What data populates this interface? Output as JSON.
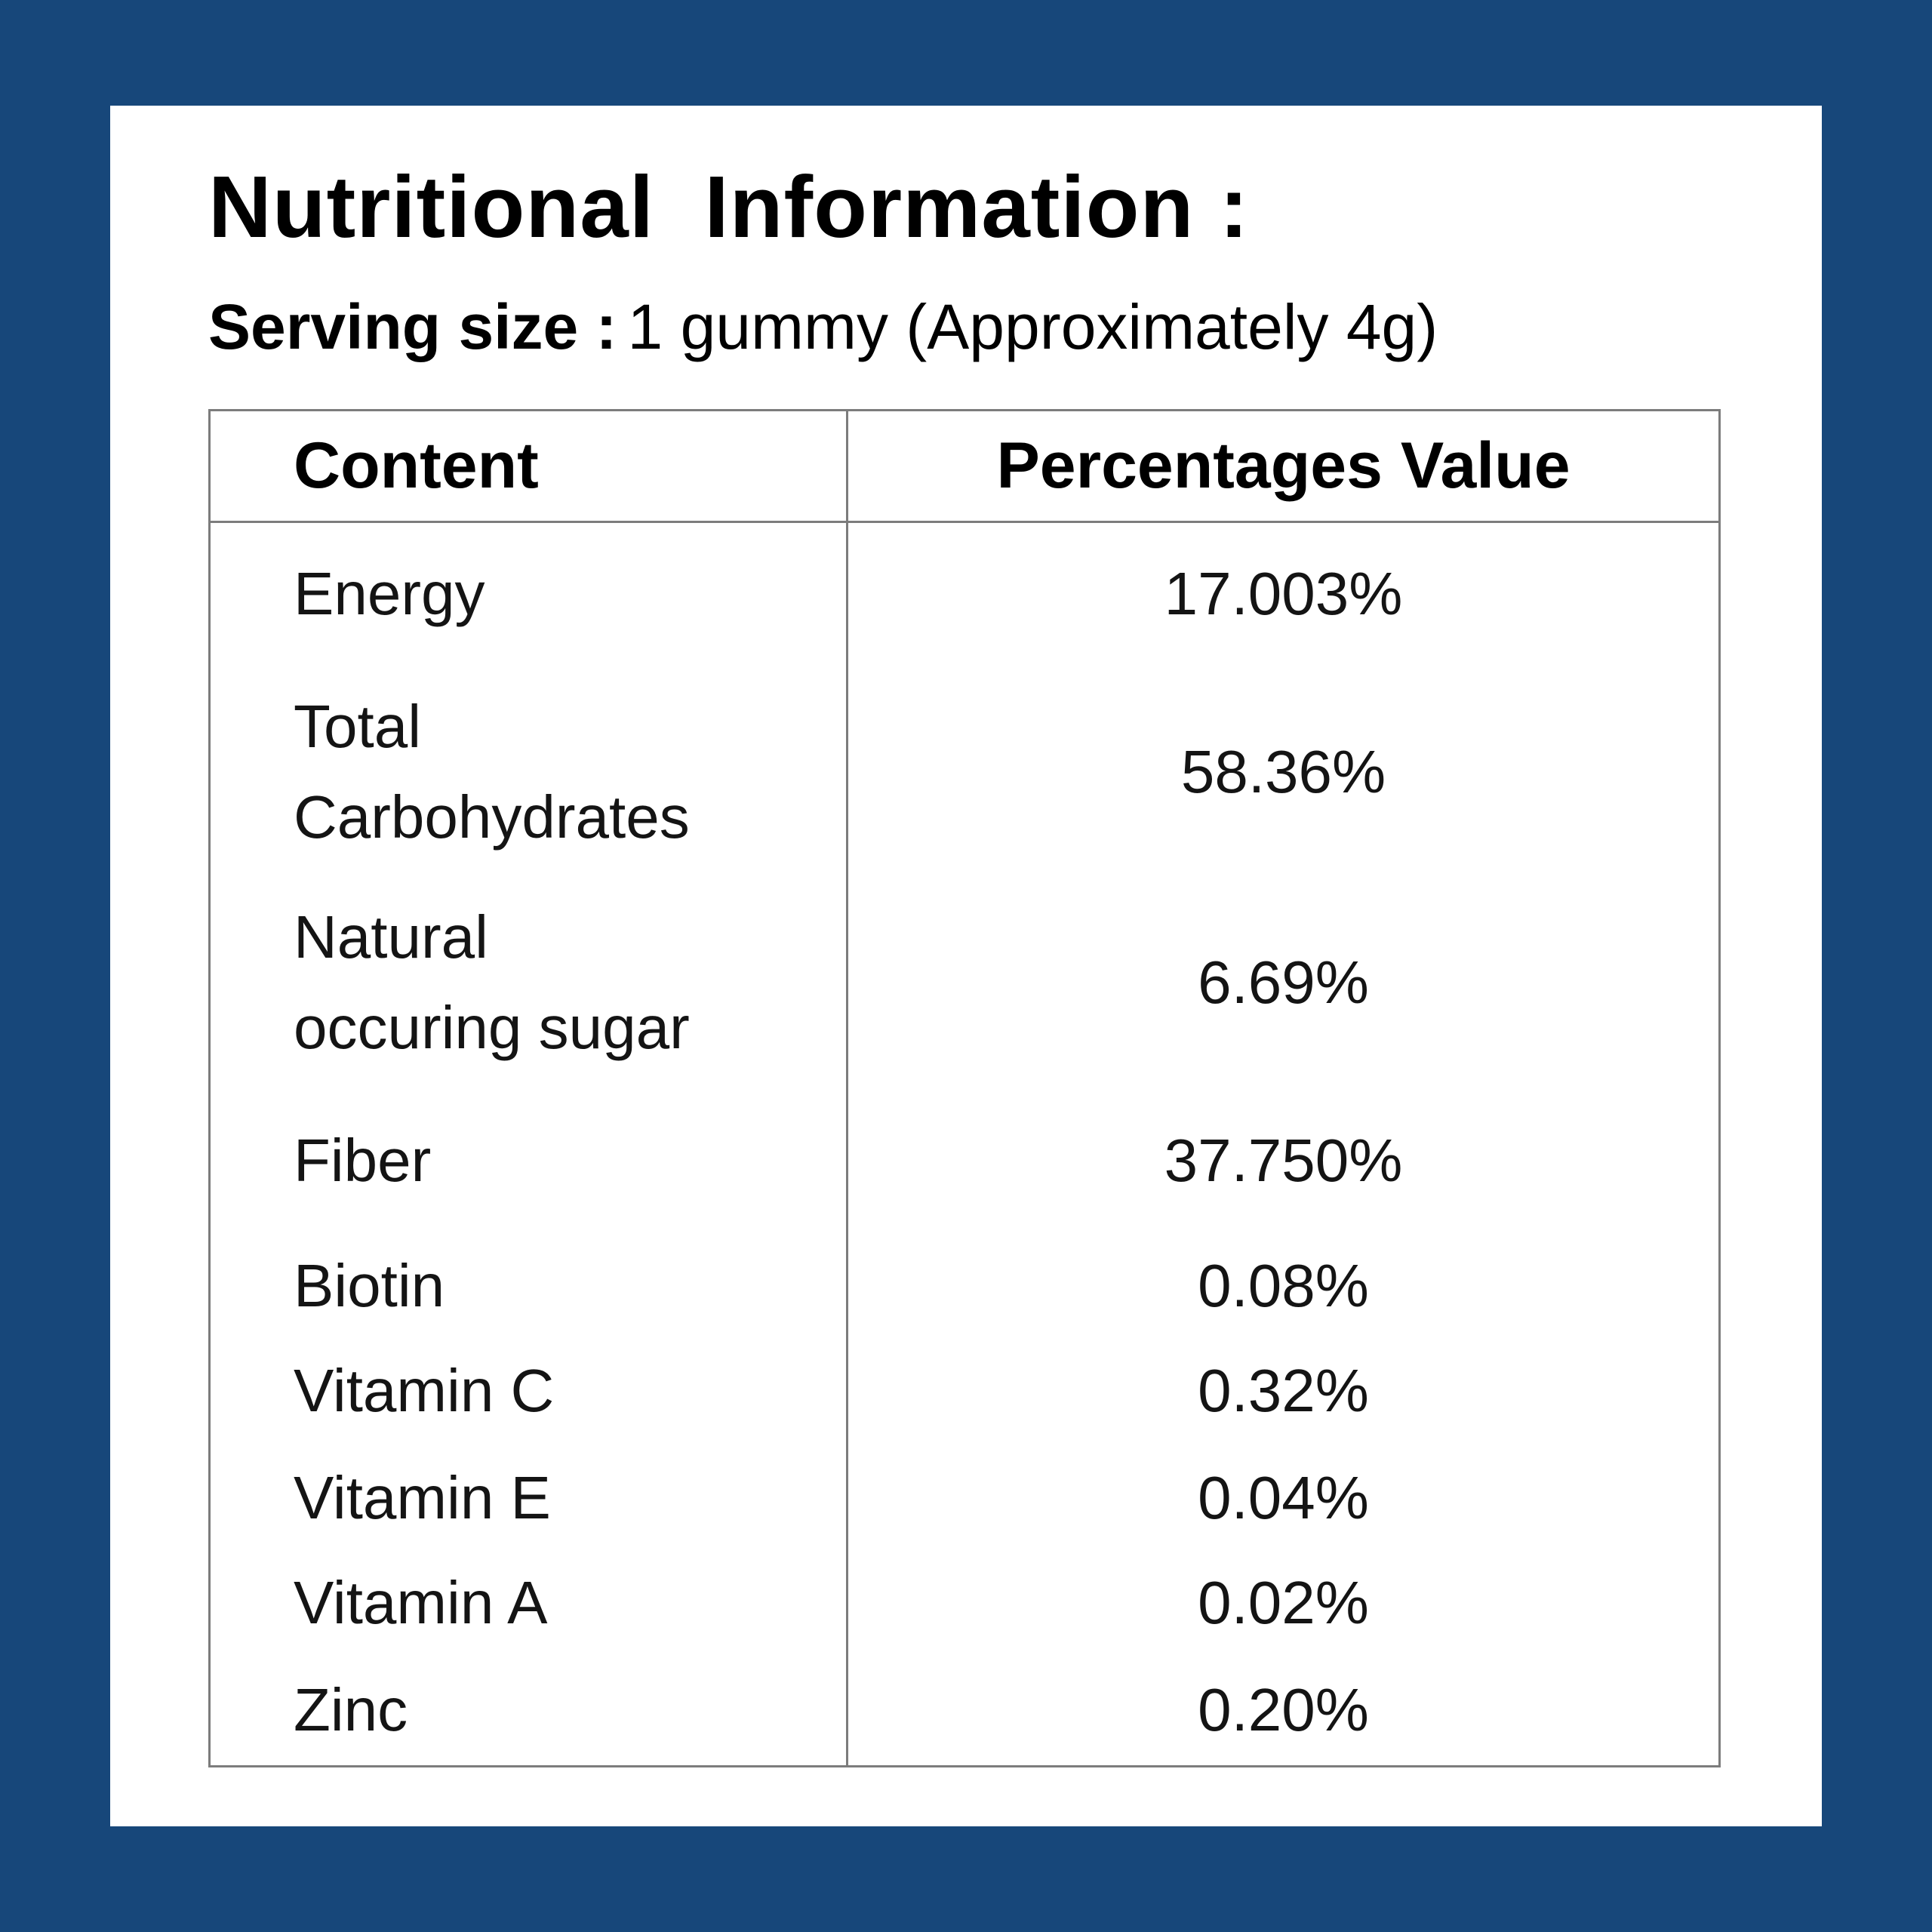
{
  "page": {
    "title": "Nutritional  Information :",
    "serving": {
      "label": "Serving size :",
      "value": "1 gummy (Approximately 4g)"
    }
  },
  "table": {
    "headers": {
      "content": "Content",
      "value": "Percentages Value"
    },
    "rows": [
      {
        "content": "Energy",
        "value": "17.003%"
      },
      {
        "content": "Total\nCarbohydrates",
        "value": "58.36%"
      },
      {
        "content": "Natural\noccuring sugar",
        "value": "6.69%"
      },
      {
        "content": "Fiber",
        "value": "37.750%"
      },
      {
        "content": "Biotin",
        "value": "0.08%"
      },
      {
        "content": "Vitamin C",
        "value": "0.32%"
      },
      {
        "content": "Vitamin E",
        "value": "0.04%"
      },
      {
        "content": "Vitamin A",
        "value": "0.02%"
      },
      {
        "content": "Zinc",
        "value": "0.20%"
      }
    ]
  },
  "colors": {
    "background": "#17477a",
    "card": "#ffffff",
    "table_border": "#7c7c7c",
    "title_text": "#000000",
    "body_text": "#141414"
  }
}
